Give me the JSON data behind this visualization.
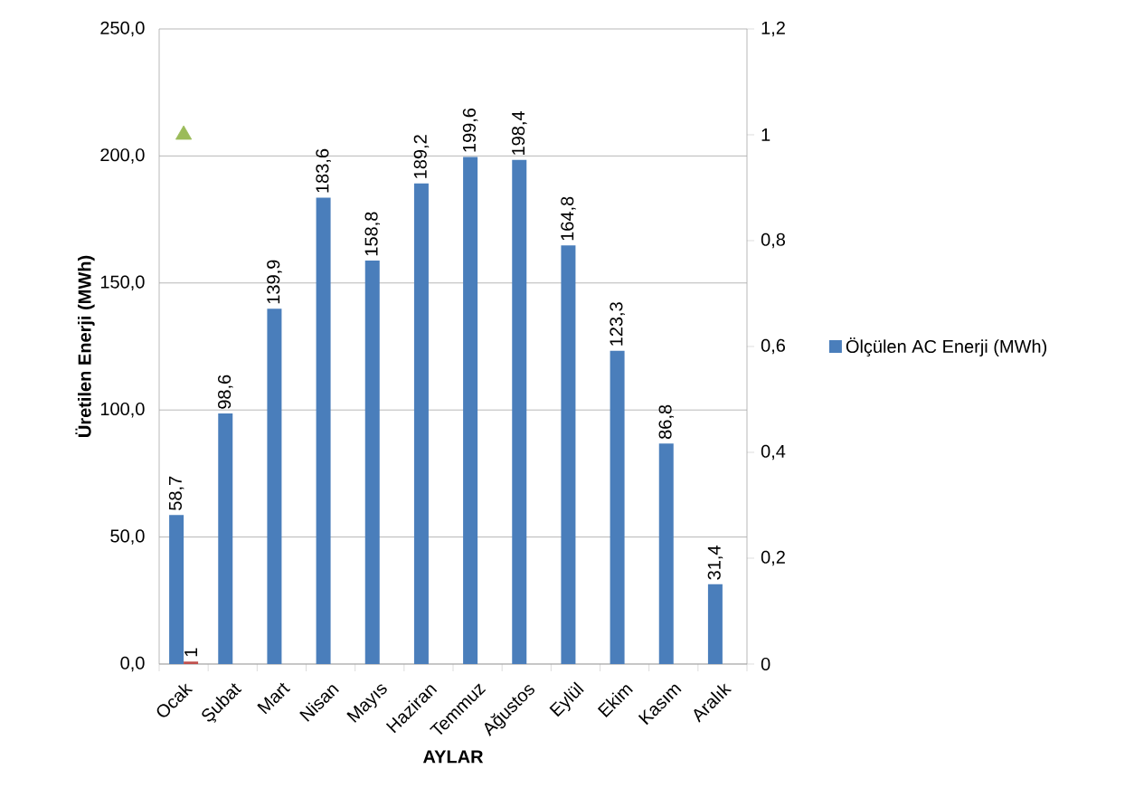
{
  "chart_data": {
    "type": "bar",
    "xlabel": "AYLAR",
    "ylabel": "Üretilen Enerji (MWh)",
    "categories": [
      "Ocak",
      "Şubat",
      "Mart",
      "Nisan",
      "Mayıs",
      "Haziran",
      "Temmuz",
      "Ağustos",
      "Eylül",
      "Ekim",
      "Kasım",
      "Aralık"
    ],
    "series": [
      {
        "name": "Ölçülen AC Enerji (MWh)",
        "color": "#4a7ebb",
        "values": [
          58.7,
          98.6,
          139.9,
          183.6,
          158.8,
          189.2,
          199.6,
          198.4,
          164.8,
          123.3,
          86.8,
          31.4
        ],
        "value_labels": [
          "58,7",
          "98,6",
          "139,9",
          "183,6",
          "158,8",
          "189,2",
          "199,6",
          "198,4",
          "164,8",
          "123,3",
          "86,8",
          "31,4"
        ]
      },
      {
        "color": "#c0504d",
        "values": [
          1,
          null,
          null,
          null,
          null,
          null,
          null,
          null,
          null,
          null,
          null,
          null
        ],
        "value_labels": [
          "1",
          null,
          null,
          null,
          null,
          null,
          null,
          null,
          null,
          null,
          null,
          null
        ]
      },
      {
        "type": "scatter",
        "axis": "y2",
        "marker": "triangle",
        "color": "#9bbb59",
        "values": [
          1,
          null,
          null,
          null,
          null,
          null,
          null,
          null,
          null,
          null,
          null,
          null
        ]
      }
    ],
    "ylim": [
      0,
      250
    ],
    "yticks": [
      {
        "value": 0,
        "label": "0,0"
      },
      {
        "value": 50,
        "label": "50,0"
      },
      {
        "value": 100,
        "label": "100,0"
      },
      {
        "value": 150,
        "label": "150,0"
      },
      {
        "value": 200,
        "label": "200,0"
      },
      {
        "value": 250,
        "label": "250,0"
      }
    ],
    "y2lim": [
      0,
      1.2
    ],
    "y2ticks": [
      0,
      {
        "value": 0.2,
        "label": "0,2"
      },
      {
        "value": 0.4,
        "label": "0,4"
      },
      {
        "value": 0.6,
        "label": "0,6"
      },
      {
        "value": 0.8,
        "label": "0,8"
      },
      1,
      {
        "value": 1.2,
        "label": "1,2"
      }
    ],
    "grid": "y",
    "legend": "right"
  }
}
